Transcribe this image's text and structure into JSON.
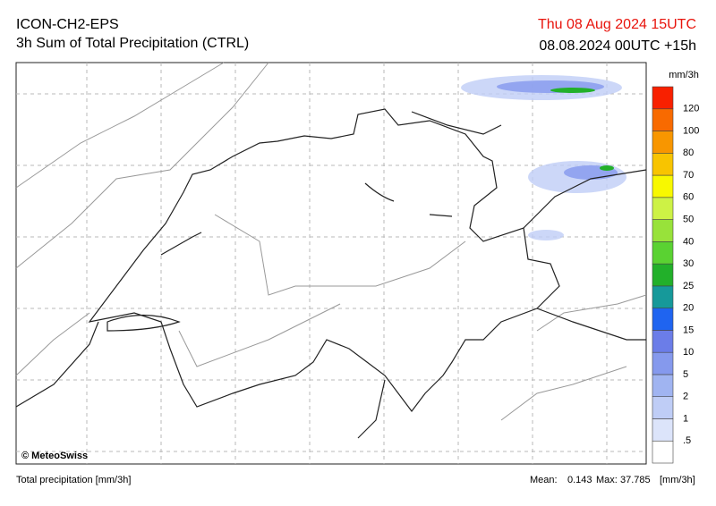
{
  "header": {
    "title": "ICON-CH2-EPS",
    "subtitle": "3h Sum of Total Precipitation (CTRL)",
    "valid_time": "Thu 08 Aug 2024 15UTC",
    "run_time": "08.08.2024 00UTC +15h"
  },
  "legend": {
    "unit": "mm/3h",
    "labels": [
      ".5",
      "1",
      "2",
      "5",
      "10",
      "15",
      "20",
      "25",
      "30",
      "40",
      "50",
      "60",
      "70",
      "80",
      "100",
      "120"
    ],
    "colors": [
      "#ffffff",
      "#dce4fa",
      "#bfcdf6",
      "#a0b4f1",
      "#8599ed",
      "#6b7de8",
      "#1f64f0",
      "#16999a",
      "#22b02a",
      "#5ad232",
      "#98e23a",
      "#cdf245",
      "#f8f800",
      "#f8c400",
      "#f89600",
      "#f86a00",
      "#f82000"
    ]
  },
  "map": {
    "credit": "© MeteoSwiss"
  },
  "footer": {
    "variable": "Total precipitation [mm/3h]",
    "mean_label": "Mean:",
    "mean": "0.143",
    "max_label": "Max:",
    "max": "37.785",
    "unit": "[mm/3h]"
  }
}
